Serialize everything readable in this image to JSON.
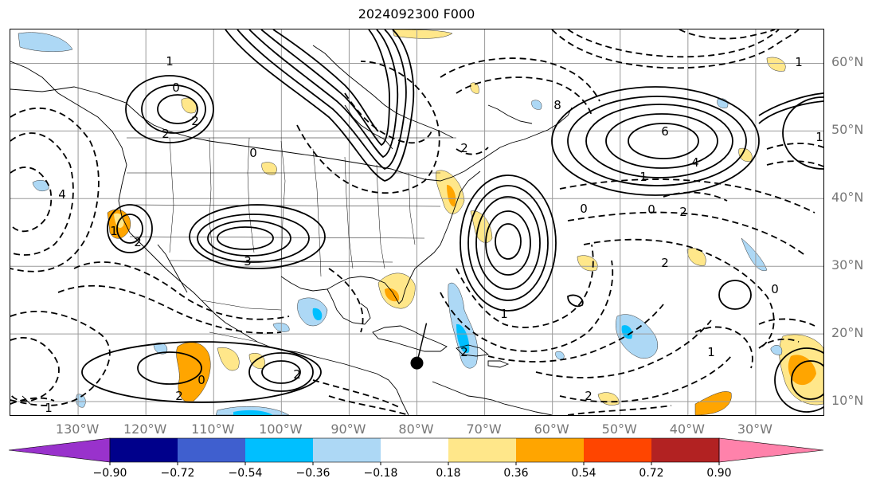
{
  "title": "2024092300 F000",
  "lat_labels": [
    {
      "text": "60°N",
      "lat": 60
    },
    {
      "text": "50°N",
      "lat": 50
    },
    {
      "text": "40°N",
      "lat": 40
    },
    {
      "text": "30°N",
      "lat": 30
    },
    {
      "text": "20°N",
      "lat": 20
    },
    {
      "text": "10°N",
      "lat": 10
    }
  ],
  "lon_labels": [
    {
      "text": "130°W",
      "lon": -130
    },
    {
      "text": "120°W",
      "lon": -120
    },
    {
      "text": "110°W",
      "lon": -110
    },
    {
      "text": "100°W",
      "lon": -100
    },
    {
      "text": "90°W",
      "lon": -90
    },
    {
      "text": "80°W",
      "lon": -80
    },
    {
      "text": "70°W",
      "lon": -70
    },
    {
      "text": "60°W",
      "lon": -60
    },
    {
      "text": "50°W",
      "lon": -50
    },
    {
      "text": "40°W",
      "lon": -40
    },
    {
      "text": "30°W",
      "lon": -30
    }
  ],
  "extent": {
    "lon_min": -140,
    "lon_max": -20,
    "lat_min": 8,
    "lat_max": 65
  },
  "colorbar": {
    "colors": [
      "#9932cc",
      "#00008b",
      "#3f5fcf",
      "#00bfff",
      "#add8f5",
      "#ffffff",
      "#ffe78a",
      "#ffa500",
      "#ff4500",
      "#b22222",
      "#ff82ab"
    ],
    "ticks": [
      "−0.90",
      "−0.72",
      "−0.54",
      "−0.36",
      "−0.18",
      "0.18",
      "0.36",
      "0.54",
      "0.72",
      "0.90"
    ]
  },
  "storm_marker": {
    "lon": -80,
    "lat": 15.7
  },
  "contour_labels": [
    "1",
    "0",
    "2",
    "2",
    "0",
    "4",
    "1",
    "2",
    "3",
    "8",
    "6",
    "4",
    "1",
    "0",
    "2",
    "1",
    "2",
    "2",
    "0",
    "2",
    "1",
    "2",
    "2",
    "1",
    "1",
    "0",
    "2",
    "1",
    "0"
  ]
}
